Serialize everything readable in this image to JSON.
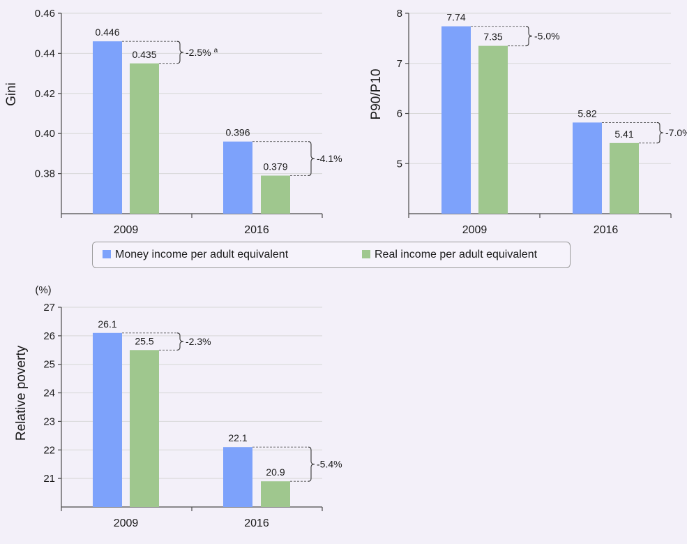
{
  "colors": {
    "money": "#7da2fb",
    "real": "#9fc78e",
    "background": "#f3f0f9"
  },
  "legend": {
    "money_label": "Money income per adult equivalent",
    "real_label": "Real income per adult equivalent"
  },
  "chart_data": [
    {
      "type": "bar",
      "categories": [
        "2009",
        "2016"
      ],
      "series": [
        {
          "name": "Money income per adult equivalent",
          "values": [
            0.446,
            0.396
          ]
        },
        {
          "name": "Real income per adult equivalent",
          "values": [
            0.435,
            0.379
          ]
        }
      ],
      "value_labels": [
        [
          "0.446",
          "0.396"
        ],
        [
          "0.435",
          "0.379"
        ]
      ],
      "annotations": [
        "-2.5%",
        "-4.1%"
      ],
      "annotation_superscripts": [
        "a",
        ""
      ],
      "title": "",
      "xlabel": "",
      "ylabel": "Gini",
      "unit_label": "",
      "ylim": [
        0.36,
        0.46
      ],
      "yticks": [
        0.38,
        0.4,
        0.42,
        0.44,
        0.46
      ],
      "ytick_labels": [
        "0.38",
        "0.40",
        "0.42",
        "0.44",
        "0.46"
      ],
      "grid": true
    },
    {
      "type": "bar",
      "categories": [
        "2009",
        "2016"
      ],
      "series": [
        {
          "name": "Money income per adult equivalent",
          "values": [
            7.74,
            5.82
          ]
        },
        {
          "name": "Real income per adult equivalent",
          "values": [
            7.35,
            5.41
          ]
        }
      ],
      "value_labels": [
        [
          "7.74",
          "5.82"
        ],
        [
          "7.35",
          "5.41"
        ]
      ],
      "annotations": [
        "-5.0%",
        "-7.0%"
      ],
      "annotation_superscripts": [
        "",
        ""
      ],
      "title": "",
      "xlabel": "",
      "ylabel": "P90/P10",
      "unit_label": "",
      "ylim": [
        4,
        8
      ],
      "yticks": [
        5,
        6,
        7,
        8
      ],
      "ytick_labels": [
        "5",
        "6",
        "7",
        "8"
      ],
      "grid": true
    },
    {
      "type": "bar",
      "categories": [
        "2009",
        "2016"
      ],
      "series": [
        {
          "name": "Money income per adult equivalent",
          "values": [
            26.1,
            22.1
          ]
        },
        {
          "name": "Real income per adult equivalent",
          "values": [
            25.5,
            20.9
          ]
        }
      ],
      "value_labels": [
        [
          "26.1",
          "22.1"
        ],
        [
          "25.5",
          "20.9"
        ]
      ],
      "annotations": [
        "-2.3%",
        "-5.4%"
      ],
      "annotation_superscripts": [
        "",
        ""
      ],
      "title": "",
      "xlabel": "",
      "ylabel": "Relative poverty",
      "unit_label": "(%)",
      "ylim": [
        20,
        27
      ],
      "yticks": [
        21,
        22,
        23,
        24,
        25,
        26,
        27
      ],
      "ytick_labels": [
        "21",
        "22",
        "23",
        "24",
        "25",
        "26",
        "27"
      ],
      "grid": true
    }
  ]
}
